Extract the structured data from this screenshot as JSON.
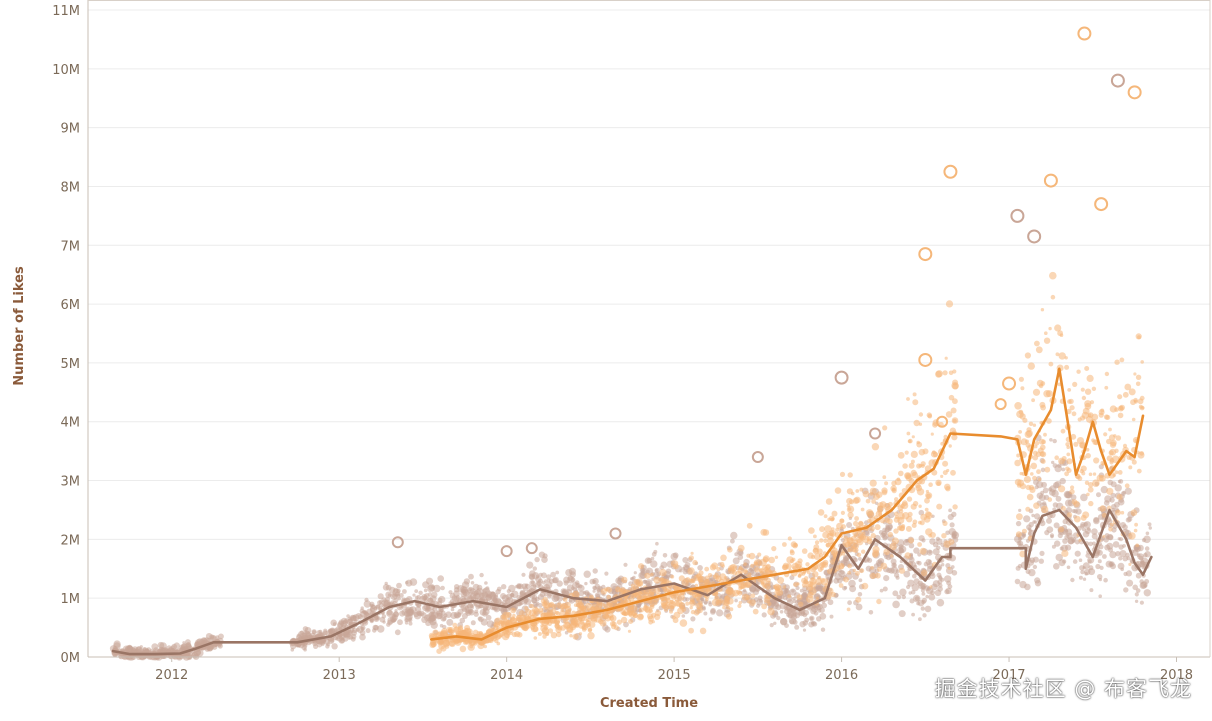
{
  "chart_data": {
    "type": "scatter",
    "xlabel": "Created Time",
    "ylabel": "Number of Likes",
    "x_ticks": [
      "2012",
      "2013",
      "2014",
      "2015",
      "2016",
      "2017",
      "2018"
    ],
    "y_ticks": [
      "0M",
      "1M",
      "2M",
      "3M",
      "4M",
      "5M",
      "6M",
      "7M",
      "8M",
      "9M",
      "10M",
      "11M"
    ],
    "xlim": [
      2011.5,
      2018.2
    ],
    "ylim": [
      0,
      11000000
    ],
    "grid": true,
    "legend": "none",
    "series": [
      {
        "color": "#9a7565",
        "point_color": "#c9a697",
        "trend": [
          [
            2011.65,
            100000
          ],
          [
            2011.75,
            50000
          ],
          [
            2011.9,
            50000
          ],
          [
            2012.05,
            60000
          ],
          [
            2012.15,
            150000
          ],
          [
            2012.25,
            250000
          ],
          [
            2012.75,
            250000
          ],
          [
            2012.95,
            350000
          ],
          [
            2013.1,
            550000
          ],
          [
            2013.3,
            850000
          ],
          [
            2013.45,
            950000
          ],
          [
            2013.6,
            850000
          ],
          [
            2013.8,
            950000
          ],
          [
            2014.0,
            850000
          ],
          [
            2014.2,
            1150000
          ],
          [
            2014.4,
            1000000
          ],
          [
            2014.6,
            950000
          ],
          [
            2014.8,
            1150000
          ],
          [
            2015.0,
            1250000
          ],
          [
            2015.2,
            1050000
          ],
          [
            2015.4,
            1400000
          ],
          [
            2015.6,
            1000000
          ],
          [
            2015.75,
            800000
          ],
          [
            2015.9,
            1000000
          ],
          [
            2016.0,
            1900000
          ],
          [
            2016.1,
            1500000
          ],
          [
            2016.2,
            2000000
          ],
          [
            2016.35,
            1700000
          ],
          [
            2016.5,
            1300000
          ],
          [
            2016.6,
            1700000
          ],
          [
            2016.65,
            1700000
          ],
          [
            2016.65,
            1850000
          ],
          [
            2017.1,
            1850000
          ],
          [
            2017.1,
            1500000
          ],
          [
            2017.15,
            2100000
          ],
          [
            2017.2,
            2400000
          ],
          [
            2017.3,
            2500000
          ],
          [
            2017.4,
            2200000
          ],
          [
            2017.5,
            1700000
          ],
          [
            2017.6,
            2500000
          ],
          [
            2017.7,
            2000000
          ],
          [
            2017.75,
            1600000
          ],
          [
            2017.8,
            1400000
          ],
          [
            2017.85,
            1700000
          ]
        ]
      },
      {
        "color": "#e88c2e",
        "point_color": "#f5b77a",
        "trend": [
          [
            2013.55,
            300000
          ],
          [
            2013.7,
            350000
          ],
          [
            2013.85,
            300000
          ],
          [
            2014.0,
            500000
          ],
          [
            2014.2,
            650000
          ],
          [
            2014.4,
            700000
          ],
          [
            2014.6,
            800000
          ],
          [
            2014.8,
            950000
          ],
          [
            2015.0,
            1100000
          ],
          [
            2015.2,
            1200000
          ],
          [
            2015.4,
            1300000
          ],
          [
            2015.6,
            1400000
          ],
          [
            2015.8,
            1500000
          ],
          [
            2015.9,
            1700000
          ],
          [
            2016.0,
            2100000
          ],
          [
            2016.15,
            2200000
          ],
          [
            2016.3,
            2500000
          ],
          [
            2016.45,
            3000000
          ],
          [
            2016.55,
            3200000
          ],
          [
            2016.6,
            3500000
          ],
          [
            2016.65,
            3800000
          ],
          [
            2016.95,
            3750000
          ],
          [
            2017.05,
            3700000
          ],
          [
            2017.1,
            3100000
          ],
          [
            2017.15,
            3700000
          ],
          [
            2017.25,
            4200000
          ],
          [
            2017.3,
            4900000
          ],
          [
            2017.35,
            4000000
          ],
          [
            2017.4,
            3100000
          ],
          [
            2017.45,
            3500000
          ],
          [
            2017.5,
            4000000
          ],
          [
            2017.55,
            3500000
          ],
          [
            2017.6,
            3100000
          ],
          [
            2017.7,
            3500000
          ],
          [
            2017.75,
            3400000
          ],
          [
            2017.8,
            4100000
          ]
        ]
      }
    ],
    "outliers": [
      [
        2016.0,
        4750000,
        0
      ],
      [
        2016.2,
        3800000,
        0
      ],
      [
        2016.6,
        4000000,
        1
      ],
      [
        2016.5,
        6850000,
        1
      ],
      [
        2016.65,
        8250000,
        1
      ],
      [
        2017.25,
        8100000,
        1
      ],
      [
        2017.45,
        10600000,
        1
      ],
      [
        2017.75,
        9600000,
        1
      ],
      [
        2017.65,
        9800000,
        0
      ],
      [
        2017.55,
        7700000,
        1
      ],
      [
        2017.05,
        7500000,
        0
      ],
      [
        2017.15,
        7150000,
        0
      ],
      [
        2016.5,
        5050000,
        1
      ],
      [
        2017.0,
        4650000,
        1
      ],
      [
        2014.0,
        1800000,
        0
      ],
      [
        2014.15,
        1850000,
        0
      ],
      [
        2013.35,
        1950000,
        0
      ],
      [
        2014.65,
        2100000,
        0
      ],
      [
        2015.5,
        3400000,
        0
      ],
      [
        2016.95,
        4300000,
        1
      ]
    ]
  },
  "watermark": "掘金技术社区 @ 布客飞龙"
}
